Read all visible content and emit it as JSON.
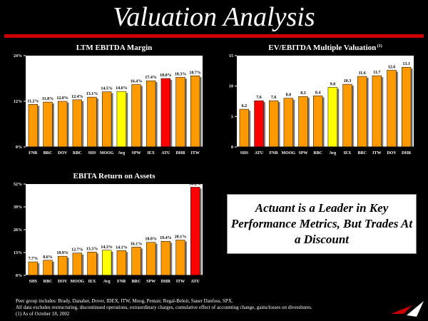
{
  "slide": {
    "title": "Valuation Analysis",
    "callout": "Actuant is a Leader in Key Performance Metrics, But Trades At a Discount",
    "footnotes": [
      "Peer group includes:  Brady, Danaher, Dover, IDEX, ITW, Moog, Pentair, Regal-Beloit, Sauer Danfoss, SPX.",
      "All data excludes restructuring, discontinued operations, extraordinary charges, cumulative effect of accounting change, gains/losses on divestitures.",
      "(1) As of October 18, 2002"
    ]
  },
  "colors": {
    "peer_bar": "#ff9900",
    "actuant_bar": "#ff0000",
    "average_bar": "#ffff00",
    "accent_rule": "#cc0000"
  },
  "chart_data": [
    {
      "id": "ebitda-margin",
      "type": "bar",
      "title": "LTM EBITDA Margin",
      "title_sup": "",
      "categories": [
        "FNR",
        "BRC",
        "DOV",
        "RBC",
        "SHS",
        "MOOG",
        "Avg",
        "SPW",
        "IEX",
        "ATU",
        "DHR",
        "ITW"
      ],
      "values": [
        11.2,
        11.8,
        12.0,
        12.4,
        13.1,
        14.5,
        14.6,
        16.4,
        17.4,
        18.0,
        18.3,
        18.7
      ],
      "data_labels": [
        "11.2%",
        "11.8%",
        "12.0%",
        "12.4%",
        "13.1%",
        "14.5%",
        "14.6%",
        "16.4%",
        "17.4%",
        "18.0%",
        "18.3%",
        "18.7%"
      ],
      "highlight": {
        "ATU": "actuant_bar",
        "Avg": "average_bar"
      },
      "ylim": [
        0,
        24
      ],
      "yticks": [
        0,
        12,
        24
      ],
      "ytick_labels": [
        "0%",
        "12%",
        "24%"
      ]
    },
    {
      "id": "ev-ebitda",
      "type": "bar",
      "title": "EV/EBITDA Multiple Valuation",
      "title_sup": "(1)",
      "categories": [
        "SHS",
        "ATU",
        "FNR",
        "MOOG",
        "SPW",
        "RBC",
        "Avg",
        "IEX",
        "BRC",
        "ITW",
        "DOV",
        "DHR"
      ],
      "values": [
        6.2,
        7.6,
        7.6,
        8.0,
        8.3,
        8.4,
        9.8,
        10.3,
        11.6,
        11.7,
        12.6,
        13.1
      ],
      "data_labels": [
        "6.2",
        "7.6",
        "7.6",
        "8.0",
        "8.3",
        "8.4",
        "9.8",
        "10.3",
        "11.6",
        "11.7",
        "12.6",
        "13.1"
      ],
      "highlight": {
        "ATU": "actuant_bar",
        "Avg": "average_bar"
      },
      "ylim": [
        0,
        15
      ],
      "yticks": [
        0,
        5,
        10,
        15
      ],
      "ytick_labels": [
        "0",
        "5",
        "10",
        "15"
      ]
    },
    {
      "id": "ebita-roa",
      "type": "bar",
      "title": "EBITA Return on Assets",
      "title_sup": "",
      "categories": [
        "SHS",
        "RBC",
        "DOV",
        "MOOG",
        "IEX",
        "Avg",
        "FNR",
        "BRC",
        "SPW",
        "DHR",
        "ITW",
        "ATU"
      ],
      "values": [
        7.7,
        8.6,
        10.9,
        12.7,
        13.3,
        14.3,
        14.1,
        16.1,
        18.8,
        19.4,
        20.1,
        50.2
      ],
      "data_labels": [
        "7.7%",
        "8.6%",
        "10.9%",
        "12.7%",
        "13.3%",
        "14.3%",
        "14.1%",
        "16.1%",
        "18.8%",
        "19.4%",
        "20.1%",
        "50.2%"
      ],
      "highlight": {
        "ATU": "actuant_bar",
        "Avg": "average_bar"
      },
      "ylim": [
        0,
        52
      ],
      "yticks": [
        0,
        13,
        26,
        39,
        52
      ],
      "ytick_labels": [
        "0%",
        "13%",
        "26%",
        "39%",
        "52%"
      ]
    }
  ]
}
